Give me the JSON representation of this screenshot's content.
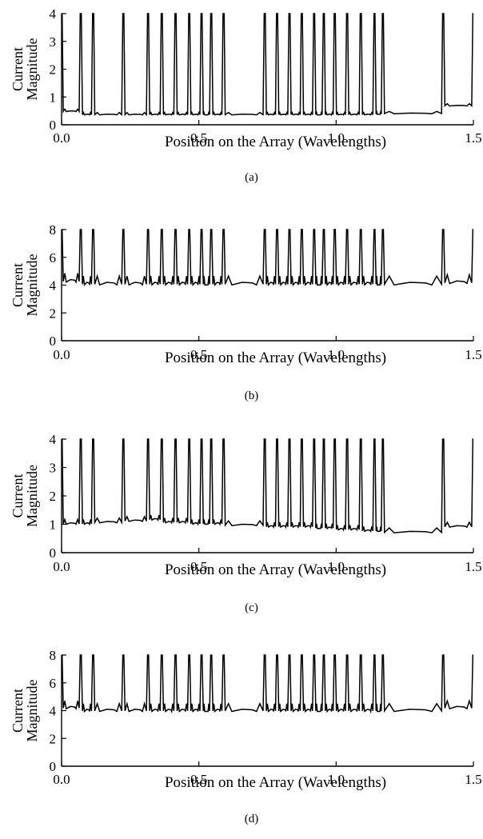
{
  "chart_data": [
    {
      "type": "line",
      "caption": "(a)",
      "xlabel": "Position on the Array (Wavelengths)",
      "ylabel_lines": [
        "Current",
        "Magnitude"
      ],
      "xlim": [
        0,
        1.5
      ],
      "ylim": [
        0,
        4
      ],
      "xticks": [
        0.0,
        0.5,
        1.0,
        1.5
      ],
      "xtick_labels": [
        "0.0",
        "0.5",
        "1.0",
        "1.5"
      ],
      "yticks": [
        0,
        1,
        2,
        3,
        4
      ],
      "ytick_labels": [
        "0",
        "1",
        "2",
        "3",
        "4"
      ],
      "grid": false,
      "series": [
        {
          "peak_positions": [
            0.0,
            0.07,
            0.115,
            0.225,
            0.315,
            0.365,
            0.415,
            0.465,
            0.51,
            0.545,
            0.59,
            0.74,
            0.785,
            0.83,
            0.875,
            0.92,
            0.955,
            0.995,
            1.04,
            1.09,
            1.14,
            1.17,
            1.39,
            1.5
          ],
          "valley_levels": [
            0.5,
            0.38,
            0.38,
            0.38,
            0.38,
            0.38,
            0.38,
            0.38,
            0.38,
            0.38,
            0.38,
            0.38,
            0.38,
            0.38,
            0.38,
            0.38,
            0.38,
            0.38,
            0.38,
            0.38,
            0.4,
            0.42,
            0.7
          ],
          "ripple": 0.06
        }
      ]
    },
    {
      "type": "line",
      "caption": "(b)",
      "xlabel": "Position on the Array (Wavelengths)",
      "ylabel_lines": [
        "Current",
        "Magnitude"
      ],
      "xlim": [
        0,
        1.5
      ],
      "ylim": [
        0,
        8
      ],
      "xticks": [
        0.0,
        0.5,
        1.0,
        1.5
      ],
      "xtick_labels": [
        "0.0",
        "0.5",
        "1.0",
        "1.5"
      ],
      "yticks": [
        0,
        2,
        4,
        6,
        8
      ],
      "ytick_labels": [
        "0",
        "2",
        "4",
        "6",
        "8"
      ],
      "grid": false,
      "series": [
        {
          "peak_positions": [
            0.0,
            0.07,
            0.115,
            0.225,
            0.315,
            0.365,
            0.415,
            0.465,
            0.51,
            0.545,
            0.59,
            0.74,
            0.785,
            0.83,
            0.875,
            0.92,
            0.955,
            0.995,
            1.04,
            1.09,
            1.14,
            1.17,
            1.39,
            1.5
          ],
          "valley_levels": [
            4.4,
            4.2,
            4.2,
            4.2,
            4.2,
            4.2,
            4.2,
            4.2,
            4.2,
            4.2,
            4.2,
            4.2,
            4.2,
            4.2,
            4.2,
            4.2,
            4.2,
            4.2,
            4.2,
            4.2,
            4.2,
            4.2,
            4.3
          ],
          "ripple": 0.45
        }
      ]
    },
    {
      "type": "line",
      "caption": "(c)",
      "xlabel": "Position on the Array (Wavelengths)",
      "ylabel_lines": [
        "Current",
        "Magnitude"
      ],
      "xlim": [
        0,
        1.5
      ],
      "ylim": [
        0,
        4
      ],
      "xticks": [
        0.0,
        0.5,
        1.0,
        1.5
      ],
      "xtick_labels": [
        "0.0",
        "0.5",
        "1.0",
        "1.5"
      ],
      "yticks": [
        0,
        1,
        2,
        3,
        4
      ],
      "ytick_labels": [
        "0",
        "1",
        "2",
        "3",
        "4"
      ],
      "grid": false,
      "series": [
        {
          "peak_positions": [
            0.0,
            0.07,
            0.115,
            0.225,
            0.315,
            0.365,
            0.415,
            0.465,
            0.51,
            0.545,
            0.59,
            0.74,
            0.785,
            0.83,
            0.875,
            0.92,
            0.955,
            0.995,
            1.04,
            1.09,
            1.14,
            1.17,
            1.39,
            1.5
          ],
          "valley_levels": [
            1.05,
            1.05,
            1.1,
            1.15,
            1.2,
            1.1,
            1.1,
            1.05,
            1.05,
            1.05,
            1.0,
            0.95,
            0.95,
            0.95,
            0.95,
            0.9,
            0.9,
            0.85,
            0.85,
            0.8,
            0.8,
            0.75,
            0.95
          ],
          "ripple": 0.12
        }
      ]
    },
    {
      "type": "line",
      "caption": "(d)",
      "xlabel": "Position on the Array (Wavelengths)",
      "ylabel_lines": [
        "Current",
        "Magnitude"
      ],
      "xlim": [
        0,
        1.5
      ],
      "ylim": [
        0,
        8
      ],
      "xticks": [
        0.0,
        0.5,
        1.0,
        1.5
      ],
      "xtick_labels": [
        "0.0",
        "0.5",
        "1.0",
        "1.5"
      ],
      "yticks": [
        0,
        2,
        4,
        6,
        8
      ],
      "ytick_labels": [
        "0",
        "2",
        "4",
        "6",
        "8"
      ],
      "grid": false,
      "series": [
        {
          "peak_positions": [
            0.0,
            0.07,
            0.115,
            0.225,
            0.315,
            0.365,
            0.415,
            0.465,
            0.51,
            0.545,
            0.59,
            0.74,
            0.785,
            0.83,
            0.875,
            0.92,
            0.955,
            0.995,
            1.04,
            1.09,
            1.14,
            1.17,
            1.39,
            1.5
          ],
          "valley_levels": [
            4.3,
            4.1,
            4.1,
            4.1,
            4.1,
            4.1,
            4.1,
            4.1,
            4.1,
            4.1,
            4.1,
            4.1,
            4.1,
            4.1,
            4.1,
            4.1,
            4.1,
            4.1,
            4.1,
            4.1,
            4.1,
            4.1,
            4.3
          ],
          "ripple": 0.4
        }
      ]
    }
  ],
  "style": {
    "line_color": "#000000",
    "background": "#ffffff"
  }
}
